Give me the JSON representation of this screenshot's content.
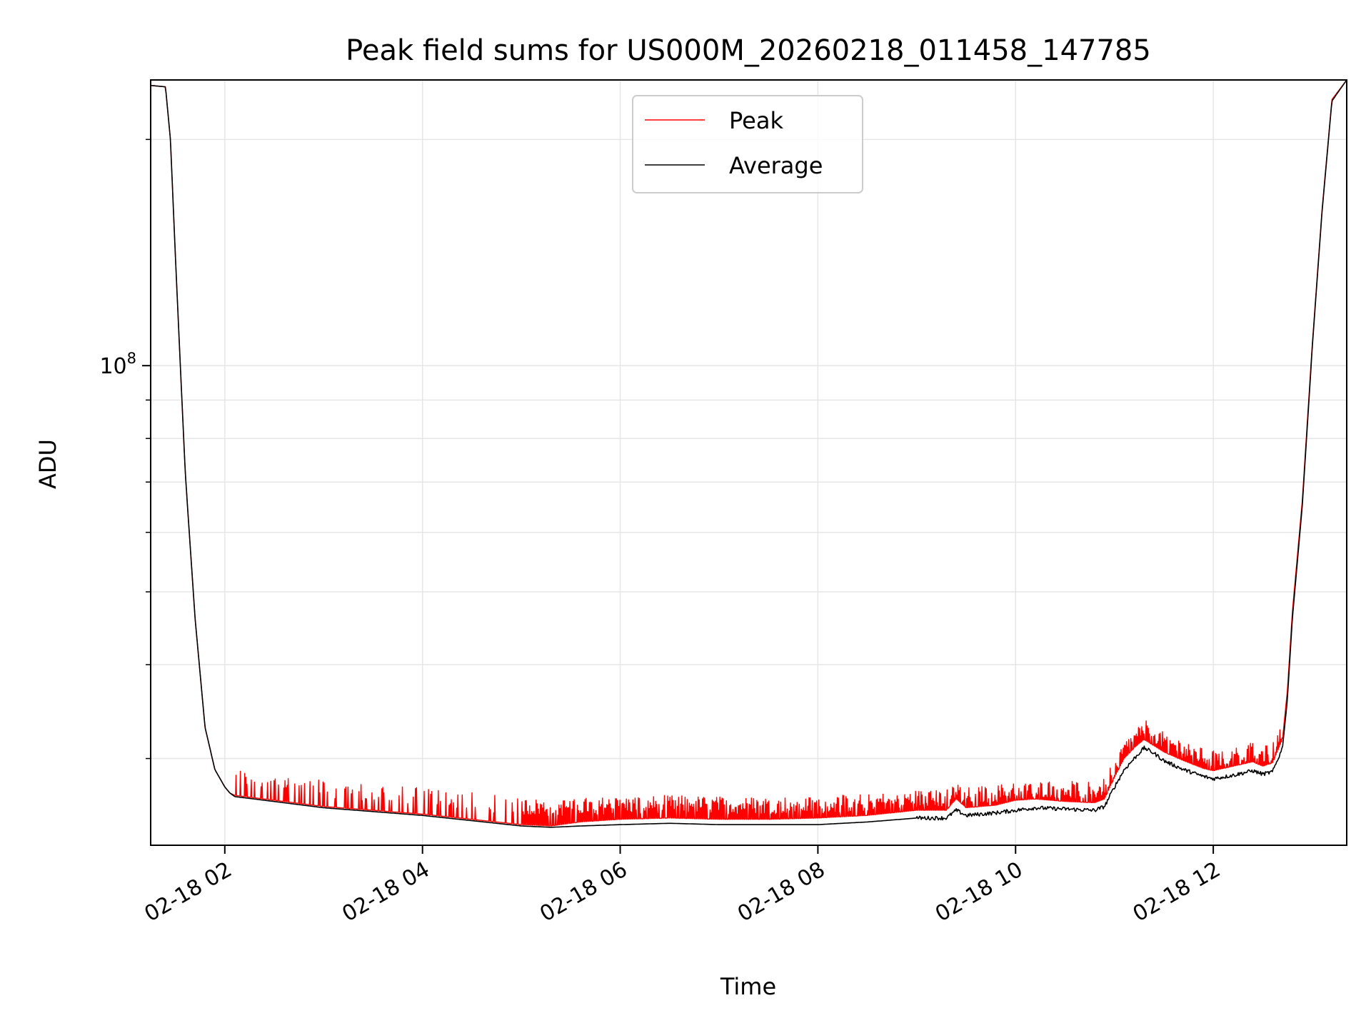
{
  "chart_data": {
    "type": "line",
    "title": "Peak field sums for US000M_20260218_011458_147785",
    "xlabel": "Time",
    "ylabel": "ADU",
    "yscale": "log",
    "xlim_hours": [
      1.25,
      13.35
    ],
    "ylim": [
      23000000,
      240000000
    ],
    "x_ticks": [
      {
        "hour": 2,
        "label": "02-18 02"
      },
      {
        "hour": 4,
        "label": "02-18 04"
      },
      {
        "hour": 6,
        "label": "02-18 06"
      },
      {
        "hour": 8,
        "label": "02-18 08"
      },
      {
        "hour": 10,
        "label": "02-18 10"
      },
      {
        "hour": 12,
        "label": "02-18 12"
      }
    ],
    "y_major_ticks": [
      {
        "value": 100000000,
        "base": "10",
        "exp": "8"
      }
    ],
    "y_minor_ticks": [
      30000000,
      40000000,
      50000000,
      60000000,
      70000000,
      80000000,
      90000000,
      200000000
    ],
    "grid": true,
    "legend_position": "upper center",
    "series": [
      {
        "name": "Average",
        "color": "#000000",
        "hours": [
          1.25,
          1.4,
          1.45,
          1.5,
          1.55,
          1.6,
          1.7,
          1.8,
          1.9,
          2.0,
          2.05,
          2.1,
          2.5,
          3.0,
          3.5,
          4.0,
          4.5,
          5.0,
          5.3,
          5.6,
          6.0,
          6.5,
          7.0,
          7.5,
          8.0,
          8.5,
          9.0,
          9.3,
          9.4,
          9.5,
          9.8,
          10.0,
          10.2,
          10.5,
          10.8,
          10.9,
          11.0,
          11.1,
          11.2,
          11.3,
          11.4,
          11.5,
          11.7,
          11.9,
          12.0,
          12.2,
          12.4,
          12.5,
          12.6,
          12.7,
          12.75,
          12.8,
          12.9,
          13.0,
          13.1,
          13.2,
          13.35
        ],
        "values": [
          236000000,
          235000000,
          200000000,
          140000000,
          100000000,
          72000000,
          46000000,
          33000000,
          29000000,
          27500000,
          27000000,
          26700000,
          26300000,
          25800000,
          25500000,
          25200000,
          24800000,
          24400000,
          24300000,
          24400000,
          24500000,
          24600000,
          24500000,
          24500000,
          24500000,
          24700000,
          25000000,
          25000000,
          25600000,
          25200000,
          25400000,
          25600000,
          25800000,
          25700000,
          25600000,
          25900000,
          27500000,
          29000000,
          30000000,
          31000000,
          30500000,
          29800000,
          29000000,
          28400000,
          28200000,
          28500000,
          28900000,
          28600000,
          28800000,
          31000000,
          36000000,
          46000000,
          65000000,
          105000000,
          160000000,
          225000000,
          240000000
        ]
      },
      {
        "name": "Peak",
        "color": "#ff0000",
        "hours": [
          1.25,
          1.4,
          1.45,
          1.5,
          1.55,
          1.6,
          1.7,
          1.8,
          1.9,
          2.0,
          2.05,
          2.1,
          2.5,
          3.0,
          3.5,
          4.0,
          4.5,
          5.0,
          5.3,
          5.6,
          6.0,
          6.5,
          7.0,
          7.5,
          8.0,
          8.5,
          9.0,
          9.3,
          9.4,
          9.5,
          9.8,
          10.0,
          10.2,
          10.5,
          10.8,
          10.9,
          11.0,
          11.1,
          11.2,
          11.3,
          11.4,
          11.5,
          11.7,
          11.9,
          12.0,
          12.2,
          12.4,
          12.5,
          12.6,
          12.7,
          12.75,
          12.8,
          12.9,
          13.0,
          13.1,
          13.2,
          13.35
        ],
        "values": [
          236000000,
          235000000,
          200000000,
          140000000,
          100000000,
          72000000,
          46000000,
          33000000,
          29000000,
          27500000,
          27000000,
          26800000,
          26400000,
          25900000,
          25600000,
          25300000,
          24900000,
          24500000,
          24400000,
          24700000,
          24900000,
          25000000,
          24900000,
          24900000,
          25000000,
          25200000,
          25600000,
          25600000,
          26500000,
          25800000,
          26000000,
          26400000,
          26500000,
          26300000,
          26200000,
          26500000,
          28300000,
          30000000,
          31000000,
          31800000,
          31200000,
          30600000,
          29800000,
          29100000,
          28900000,
          29300000,
          29700000,
          29300000,
          29600000,
          31800000,
          37000000,
          47000000,
          66000000,
          106000000,
          161000000,
          226000000,
          240000000
        ]
      }
    ],
    "peak_spikes": {
      "start_hour": 2.1,
      "end_hour": 12.7,
      "typical_excess_ratio": 1.04,
      "max_excess_ratio": 1.09
    }
  }
}
